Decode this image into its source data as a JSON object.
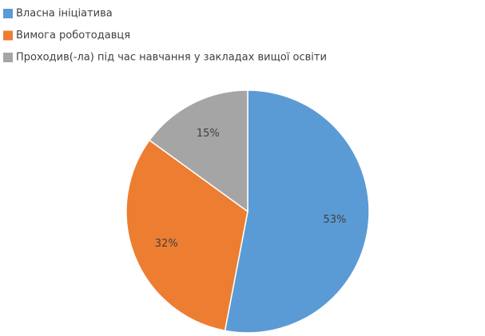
{
  "chart_data": {
    "type": "pie",
    "categories": [
      "Власна ініціатива",
      "Вимога роботодавця",
      "Проходив(-ла) під час навчання у закладах вищої освіти"
    ],
    "values": [
      53,
      32,
      15
    ],
    "value_labels": [
      "53%",
      "32%",
      "15%"
    ],
    "colors": [
      "#5b9bd5",
      "#ed7d31",
      "#a5a5a5"
    ],
    "legend": "top-left"
  }
}
